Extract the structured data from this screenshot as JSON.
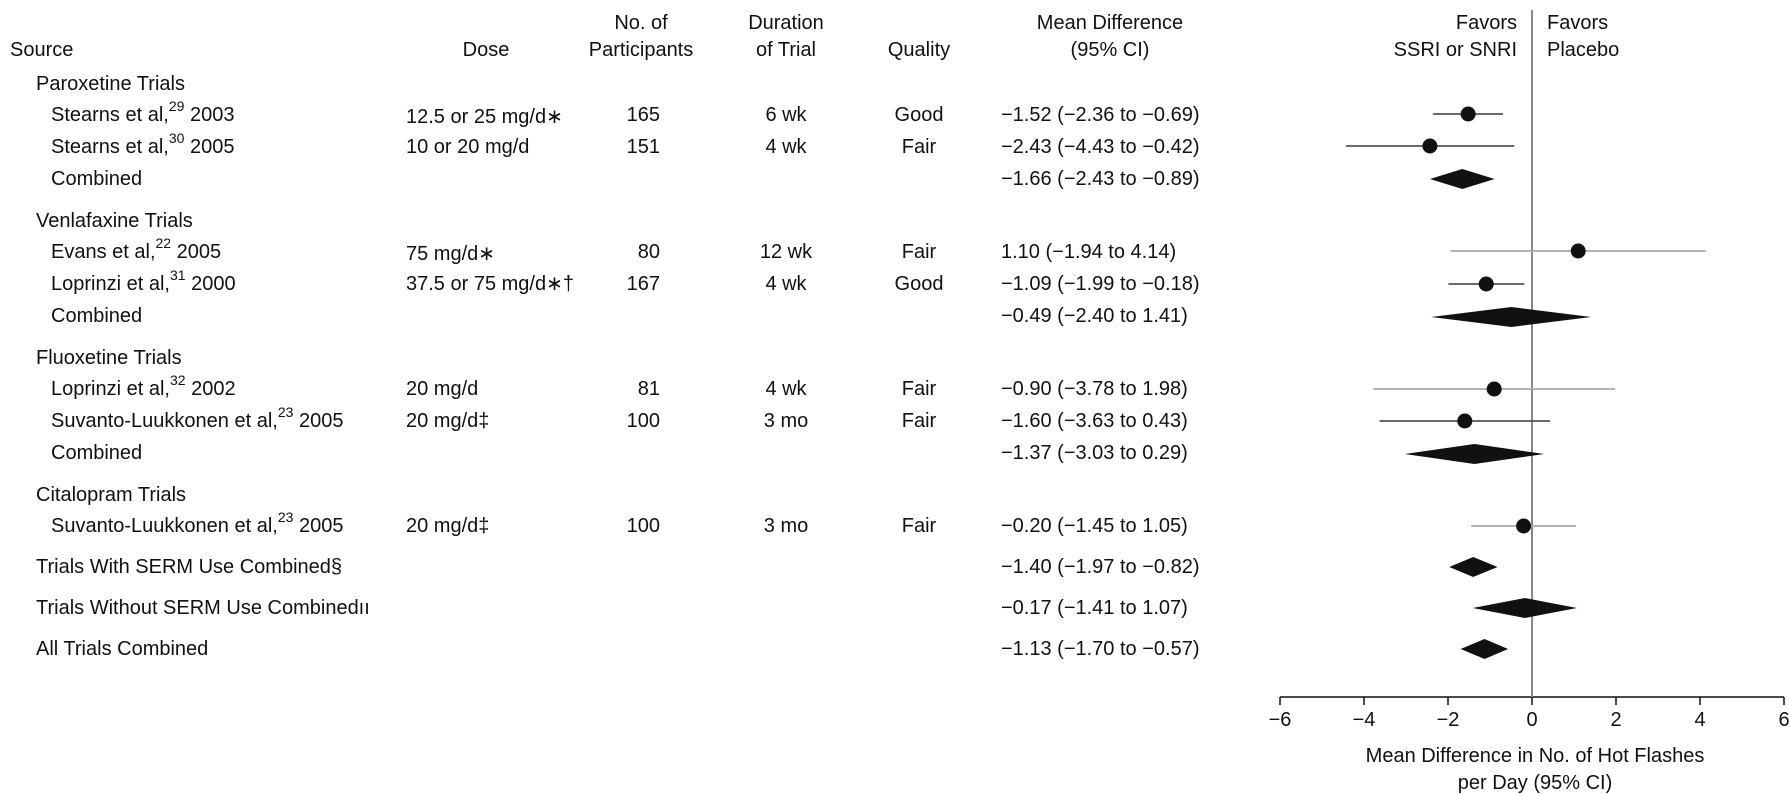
{
  "headers": {
    "source": "Source",
    "dose": "Dose",
    "n_line1": "No. of",
    "n_line2": "Participants",
    "dur_line1": "Duration",
    "dur_line2": "of Trial",
    "quality": "Quality",
    "md_line1": "Mean Difference",
    "md_line2": "(95% CI)",
    "favors_left_1": "Favors",
    "favors_left_2": "SSRI or SNRI",
    "favors_right_1": "Favors",
    "favors_right_2": "Placebo"
  },
  "groups": [
    {
      "title": "Paroxetine Trials",
      "trials": [
        {
          "author": "Stearns et al,",
          "ref": "29",
          "year": "2003",
          "dose": "12.5 or 25 mg/d∗",
          "n": "165",
          "duration": "6 wk",
          "quality": "Good",
          "ci_text": "−1.52 (−2.36 to −0.69)"
        },
        {
          "author": "Stearns et al,",
          "ref": "30",
          "year": "2005",
          "dose": "10 or 20 mg/d",
          "n": "151",
          "duration": "4 wk",
          "quality": "Fair",
          "ci_text": "−2.43 (−4.43 to −0.42)"
        }
      ],
      "combined": {
        "label": "Combined",
        "ci_text": "−1.66 (−2.43 to −0.89)"
      }
    },
    {
      "title": "Venlafaxine Trials",
      "trials": [
        {
          "author": "Evans et al,",
          "ref": "22",
          "year": "2005",
          "dose": "75 mg/d∗",
          "n": "80",
          "duration": "12 wk",
          "quality": "Fair",
          "ci_text": "1.10 (−1.94 to 4.14)"
        },
        {
          "author": "Loprinzi et al,",
          "ref": "31",
          "year": "2000",
          "dose": "37.5 or 75 mg/d∗†",
          "n": "167",
          "duration": "4 wk",
          "quality": "Good",
          "ci_text": "−1.09 (−1.99 to −0.18)"
        }
      ],
      "combined": {
        "label": "Combined",
        "ci_text": "−0.49 (−2.40 to 1.41)"
      }
    },
    {
      "title": "Fluoxetine Trials",
      "trials": [
        {
          "author": "Loprinzi et al,",
          "ref": "32",
          "year": "2002",
          "dose": "20 mg/d",
          "n": "81",
          "duration": "4 wk",
          "quality": "Fair",
          "ci_text": "−0.90 (−3.78 to 1.98)"
        },
        {
          "author": "Suvanto-Luukkonen et al,",
          "ref": "23",
          "year": "2005",
          "dose": "20 mg/d‡",
          "n": "100",
          "duration": "3 mo",
          "quality": "Fair",
          "ci_text": "−1.60 (−3.63 to 0.43)"
        }
      ],
      "combined": {
        "label": "Combined",
        "ci_text": "−1.37 (−3.03 to 0.29)"
      }
    },
    {
      "title": "Citalopram Trials",
      "trials": [
        {
          "author": "Suvanto-Luukkonen et al,",
          "ref": "23",
          "year": "2005",
          "dose": "20 mg/d‡",
          "n": "100",
          "duration": "3 mo",
          "quality": "Fair",
          "ci_text": "−0.20 (−1.45 to 1.05)"
        }
      ]
    }
  ],
  "summaries": [
    {
      "label": "Trials With SERM Use Combined§",
      "ci_text": "−1.40 (−1.97 to −0.82)"
    },
    {
      "label": "Trials Without SERM Use Combinedıı",
      "ci_text": "−0.17 (−1.41 to 1.07)"
    },
    {
      "label": "All Trials Combined",
      "ci_text": "−1.13 (−1.70 to −0.57)"
    }
  ],
  "chart_data": {
    "type": "forest",
    "xlabel": "Mean Difference in No. of Hot Flashes per Day (95% CI)",
    "xlabel_line1": "Mean Difference in No. of Hot Flashes",
    "xlabel_line2": "per Day (95% CI)",
    "xlim": [
      -6,
      6
    ],
    "xticks": [
      -6,
      -4,
      -2,
      0,
      2,
      4,
      6
    ],
    "xtick_labels": [
      "−6",
      "−4",
      "−2",
      "0",
      "2",
      "4",
      "6"
    ],
    "reference_line": 0,
    "estimates": [
      {
        "label": "Stearns et al, 2003",
        "kind": "trial",
        "mean": -1.52,
        "lo": -2.36,
        "hi": -0.69
      },
      {
        "label": "Stearns et al, 2005",
        "kind": "trial",
        "mean": -2.43,
        "lo": -4.43,
        "hi": -0.42
      },
      {
        "label": "Paroxetine Combined",
        "kind": "combined",
        "mean": -1.66,
        "lo": -2.43,
        "hi": -0.89
      },
      {
        "label": "Evans et al, 2005",
        "kind": "trial",
        "mean": 1.1,
        "lo": -1.94,
        "hi": 4.14
      },
      {
        "label": "Loprinzi et al, 2000",
        "kind": "trial",
        "mean": -1.09,
        "lo": -1.99,
        "hi": -0.18
      },
      {
        "label": "Venlafaxine Combined",
        "kind": "combined",
        "mean": -0.49,
        "lo": -2.4,
        "hi": 1.41
      },
      {
        "label": "Loprinzi et al, 2002",
        "kind": "trial",
        "mean": -0.9,
        "lo": -3.78,
        "hi": 1.98
      },
      {
        "label": "Suvanto-Luukkonen et al, 2005 (fluoxetine)",
        "kind": "trial",
        "mean": -1.6,
        "lo": -3.63,
        "hi": 0.43
      },
      {
        "label": "Fluoxetine Combined",
        "kind": "combined",
        "mean": -1.37,
        "lo": -3.03,
        "hi": 0.29
      },
      {
        "label": "Suvanto-Luukkonen et al, 2005 (citalopram)",
        "kind": "trial",
        "mean": -0.2,
        "lo": -1.45,
        "hi": 1.05
      },
      {
        "label": "Trials With SERM Use Combined",
        "kind": "combined",
        "mean": -1.4,
        "lo": -1.97,
        "hi": -0.82
      },
      {
        "label": "Trials Without SERM Use Combined",
        "kind": "combined",
        "mean": -0.17,
        "lo": -1.41,
        "hi": 1.07
      },
      {
        "label": "All Trials Combined",
        "kind": "combined",
        "mean": -1.13,
        "lo": -1.7,
        "hi": -0.57
      }
    ]
  }
}
